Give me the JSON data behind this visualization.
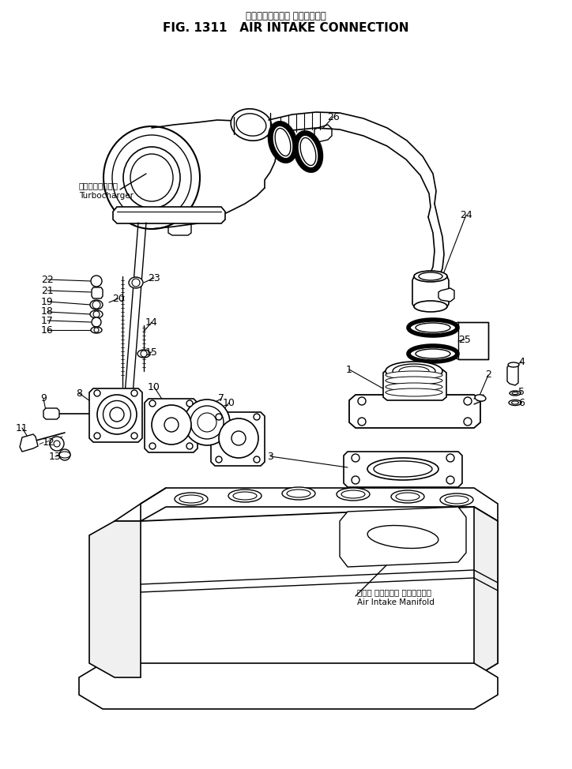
{
  "title_jp": "エアーインテーク コネクション",
  "title_en": "FIG. 1311   AIR INTAKE CONNECTION",
  "bg_color": "#ffffff",
  "lc": "#000000",
  "fig_width": 7.24,
  "fig_height": 9.74,
  "dpi": 100,
  "label_turbo_jp": "ターボチャージャ",
  "label_turbo_en": "Turbocharger",
  "label_manifold_jp": "エアー インテーク マニホールド",
  "label_manifold_en": "Air Intake Manifold"
}
